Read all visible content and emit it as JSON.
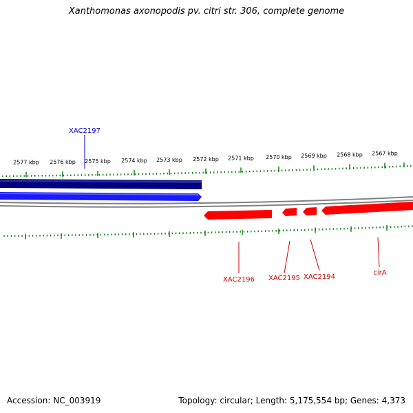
{
  "title": "Xanthomonas axonopodis pv. citri str. 306, complete genome",
  "footer": {
    "accession": "Accession: NC_003919",
    "topology": "Topology: circular; Length: 5,175,554 bp; Genes: 4,373"
  },
  "colors": {
    "forward_strand_light": "#1a1aff",
    "forward_strand_dark": "#000080",
    "reverse_strand": "#ff0000",
    "backbone": "#808080",
    "ticks": "#008000",
    "forward_label": "#0000cc",
    "reverse_label": "#cc0000"
  },
  "ruler": {
    "unit": "kbp",
    "ticks": [
      "2577 kbp",
      "2576 kbp",
      "2575 kbp",
      "2574 kbp",
      "2573 kbp",
      "2572 kbp",
      "2571 kbp",
      "2570 kbp",
      "2569 kbp",
      "2568 kbp",
      "2567 kbp"
    ]
  },
  "genes": [
    {
      "name": "XAC2197",
      "strand": "forward"
    },
    {
      "name": "XAC2196",
      "strand": "reverse"
    },
    {
      "name": "XAC2195",
      "strand": "reverse"
    },
    {
      "name": "XAC2194",
      "strand": "reverse"
    },
    {
      "name": "cirA",
      "strand": "reverse"
    }
  ]
}
